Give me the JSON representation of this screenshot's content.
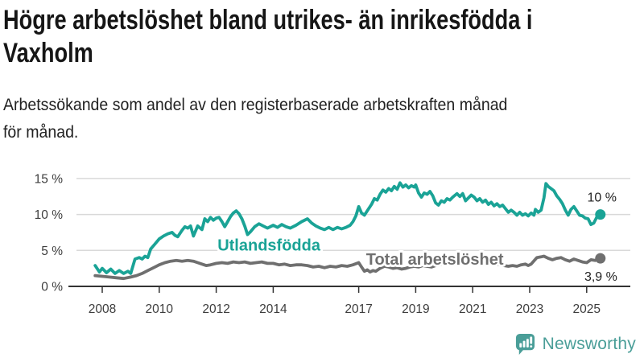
{
  "header": {
    "title_lines": [
      "Högre arbetslöshet bland utrikes- än inrikesfödda i",
      "Vaxholm"
    ],
    "subtitle_lines": [
      "Arbetssökande som andel av den registerbaserade arbetskraften månad",
      "för månad."
    ]
  },
  "colors": {
    "foreign_born": "#1aa396",
    "total": "#6f6f6f",
    "grid": "#d9d9d9",
    "axis": "#333333",
    "tick_text": "#3d3d3d",
    "annotation_text": "#222222",
    "halo": "#ffffff",
    "logo": "#4a9e98"
  },
  "chart_data": {
    "type": "line",
    "title": "Högre arbetslöshet bland utrikes- än inrikesfödda i Vaxholm",
    "subtitle": "Arbetssökande som andel av den registerbaserade arbetskraften månad för månad.",
    "xlabel": "",
    "ylabel": "%",
    "xlim": [
      2007.6,
      2025.6
    ],
    "ylim": [
      0,
      16.3
    ],
    "grid": "horizontal",
    "legend_position": "inline-labels",
    "y_ticks": [
      {
        "value": 15,
        "label": "15 %"
      },
      {
        "value": 10,
        "label": "10 %"
      },
      {
        "value": 5,
        "label": "5 %"
      },
      {
        "value": 0,
        "label": "0 %"
      }
    ],
    "x_ticks": [
      {
        "value": 2008,
        "label": "2008"
      },
      {
        "value": 2010,
        "label": "2010"
      },
      {
        "value": 2012,
        "label": "2012"
      },
      {
        "value": 2014,
        "label": "2014"
      },
      {
        "value": 2017,
        "label": "2017"
      },
      {
        "value": 2019,
        "label": "2019"
      },
      {
        "value": 2021,
        "label": "2021"
      },
      {
        "value": 2023,
        "label": "2023"
      },
      {
        "value": 2025,
        "label": "2025"
      }
    ],
    "series": [
      {
        "name": "Utlandsfödda",
        "key": "utlandsfodda",
        "color": "#1aa396",
        "end_label": "10 %",
        "end_label_at": [
          2025.02,
          11.8
        ],
        "name_label_at": [
          2013.85,
          5.0
        ],
        "points": [
          [
            2007.75,
            2.9
          ],
          [
            2007.9,
            2.0
          ],
          [
            2008.0,
            2.5
          ],
          [
            2008.15,
            1.9
          ],
          [
            2008.3,
            2.4
          ],
          [
            2008.45,
            1.8
          ],
          [
            2008.6,
            2.2
          ],
          [
            2008.75,
            1.8
          ],
          [
            2008.9,
            2.1
          ],
          [
            2009.0,
            1.8
          ],
          [
            2009.15,
            3.8
          ],
          [
            2009.3,
            4.0
          ],
          [
            2009.4,
            3.8
          ],
          [
            2009.5,
            4.2
          ],
          [
            2009.6,
            4.0
          ],
          [
            2009.7,
            5.2
          ],
          [
            2009.85,
            5.9
          ],
          [
            2010.0,
            6.6
          ],
          [
            2010.15,
            7.0
          ],
          [
            2010.3,
            7.3
          ],
          [
            2010.45,
            7.5
          ],
          [
            2010.55,
            7.1
          ],
          [
            2010.65,
            6.9
          ],
          [
            2010.8,
            7.8
          ],
          [
            2010.9,
            8.3
          ],
          [
            2011.0,
            8.1
          ],
          [
            2011.1,
            8.4
          ],
          [
            2011.2,
            7.0
          ],
          [
            2011.35,
            8.4
          ],
          [
            2011.5,
            7.9
          ],
          [
            2011.6,
            9.4
          ],
          [
            2011.7,
            9.0
          ],
          [
            2011.8,
            9.6
          ],
          [
            2011.9,
            9.2
          ],
          [
            2012.0,
            9.5
          ],
          [
            2012.1,
            9.6
          ],
          [
            2012.2,
            9.0
          ],
          [
            2012.3,
            8.3
          ],
          [
            2012.4,
            9.0
          ],
          [
            2012.5,
            9.7
          ],
          [
            2012.6,
            10.2
          ],
          [
            2012.7,
            10.5
          ],
          [
            2012.8,
            10.1
          ],
          [
            2012.9,
            9.4
          ],
          [
            2013.0,
            8.4
          ],
          [
            2013.1,
            7.2
          ],
          [
            2013.2,
            7.6
          ],
          [
            2013.35,
            8.3
          ],
          [
            2013.5,
            8.7
          ],
          [
            2013.65,
            8.4
          ],
          [
            2013.8,
            8.1
          ],
          [
            2014.0,
            8.5
          ],
          [
            2014.15,
            8.2
          ],
          [
            2014.3,
            8.6
          ],
          [
            2014.45,
            8.3
          ],
          [
            2014.6,
            8.1
          ],
          [
            2014.8,
            8.5
          ],
          [
            2015.0,
            9.0
          ],
          [
            2015.2,
            9.4
          ],
          [
            2015.35,
            8.8
          ],
          [
            2015.5,
            8.4
          ],
          [
            2015.65,
            8.1
          ],
          [
            2015.8,
            7.9
          ],
          [
            2015.95,
            8.2
          ],
          [
            2016.1,
            7.9
          ],
          [
            2016.25,
            8.2
          ],
          [
            2016.4,
            8.0
          ],
          [
            2016.55,
            8.2
          ],
          [
            2016.7,
            8.5
          ],
          [
            2016.8,
            9.0
          ],
          [
            2016.9,
            9.8
          ],
          [
            2017.0,
            11.1
          ],
          [
            2017.1,
            10.2
          ],
          [
            2017.2,
            9.9
          ],
          [
            2017.3,
            10.5
          ],
          [
            2017.45,
            11.4
          ],
          [
            2017.55,
            12.2
          ],
          [
            2017.65,
            12.0
          ],
          [
            2017.75,
            12.8
          ],
          [
            2017.85,
            13.4
          ],
          [
            2017.95,
            13.1
          ],
          [
            2018.05,
            13.6
          ],
          [
            2018.15,
            13.3
          ],
          [
            2018.25,
            13.9
          ],
          [
            2018.35,
            13.5
          ],
          [
            2018.45,
            14.4
          ],
          [
            2018.55,
            13.8
          ],
          [
            2018.65,
            14.1
          ],
          [
            2018.75,
            13.7
          ],
          [
            2018.85,
            14.0
          ],
          [
            2018.95,
            13.8
          ],
          [
            2019.0,
            14.1
          ],
          [
            2019.1,
            13.0
          ],
          [
            2019.2,
            12.4
          ],
          [
            2019.3,
            13.0
          ],
          [
            2019.4,
            12.8
          ],
          [
            2019.5,
            13.2
          ],
          [
            2019.6,
            12.6
          ],
          [
            2019.7,
            11.6
          ],
          [
            2019.8,
            11.3
          ],
          [
            2019.9,
            11.9
          ],
          [
            2020.0,
            11.7
          ],
          [
            2020.1,
            12.2
          ],
          [
            2020.2,
            12.0
          ],
          [
            2020.3,
            12.4
          ],
          [
            2020.45,
            12.9
          ],
          [
            2020.55,
            12.5
          ],
          [
            2020.65,
            12.9
          ],
          [
            2020.75,
            11.9
          ],
          [
            2020.85,
            12.3
          ],
          [
            2020.95,
            12.7
          ],
          [
            2021.05,
            12.4
          ],
          [
            2021.15,
            11.9
          ],
          [
            2021.25,
            12.2
          ],
          [
            2021.35,
            11.7
          ],
          [
            2021.45,
            12.0
          ],
          [
            2021.55,
            11.4
          ],
          [
            2021.65,
            11.7
          ],
          [
            2021.75,
            11.2
          ],
          [
            2021.85,
            11.5
          ],
          [
            2021.95,
            11.1
          ],
          [
            2022.05,
            11.3
          ],
          [
            2022.15,
            10.8
          ],
          [
            2022.25,
            10.3
          ],
          [
            2022.35,
            10.6
          ],
          [
            2022.45,
            10.3
          ],
          [
            2022.55,
            9.9
          ],
          [
            2022.65,
            10.3
          ],
          [
            2022.75,
            9.9
          ],
          [
            2022.85,
            10.1
          ],
          [
            2022.95,
            9.8
          ],
          [
            2023.05,
            10.2
          ],
          [
            2023.15,
            9.9
          ],
          [
            2023.2,
            10.7
          ],
          [
            2023.3,
            10.3
          ],
          [
            2023.4,
            10.6
          ],
          [
            2023.5,
            12.3
          ],
          [
            2023.57,
            14.3
          ],
          [
            2023.65,
            13.9
          ],
          [
            2023.75,
            13.6
          ],
          [
            2023.85,
            13.3
          ],
          [
            2023.95,
            12.6
          ],
          [
            2024.05,
            12.1
          ],
          [
            2024.15,
            11.5
          ],
          [
            2024.25,
            10.6
          ],
          [
            2024.35,
            9.9
          ],
          [
            2024.45,
            10.7
          ],
          [
            2024.55,
            11.1
          ],
          [
            2024.65,
            10.5
          ],
          [
            2024.75,
            9.9
          ],
          [
            2024.85,
            9.8
          ],
          [
            2024.95,
            9.5
          ],
          [
            2025.05,
            9.4
          ],
          [
            2025.15,
            8.6
          ],
          [
            2025.25,
            8.8
          ],
          [
            2025.35,
            9.6
          ],
          [
            2025.48,
            10.0
          ]
        ]
      },
      {
        "name": "Total arbetslöshet",
        "key": "total-arbetsloshet",
        "color": "#6f6f6f",
        "end_label": "3,9 %",
        "end_label_at": [
          2024.92,
          0.8
        ],
        "name_label_at": [
          2019.67,
          3.0
        ],
        "points": [
          [
            2007.75,
            1.5
          ],
          [
            2008.0,
            1.4
          ],
          [
            2008.25,
            1.3
          ],
          [
            2008.5,
            1.2
          ],
          [
            2008.75,
            1.1
          ],
          [
            2009.0,
            1.3
          ],
          [
            2009.2,
            1.5
          ],
          [
            2009.4,
            1.8
          ],
          [
            2009.6,
            2.2
          ],
          [
            2009.8,
            2.6
          ],
          [
            2010.0,
            3.0
          ],
          [
            2010.2,
            3.3
          ],
          [
            2010.4,
            3.5
          ],
          [
            2010.6,
            3.6
          ],
          [
            2010.8,
            3.5
          ],
          [
            2011.0,
            3.6
          ],
          [
            2011.2,
            3.5
          ],
          [
            2011.35,
            3.3
          ],
          [
            2011.5,
            3.1
          ],
          [
            2011.65,
            2.9
          ],
          [
            2011.8,
            3.0
          ],
          [
            2012.0,
            3.2
          ],
          [
            2012.2,
            3.3
          ],
          [
            2012.4,
            3.2
          ],
          [
            2012.6,
            3.4
          ],
          [
            2012.8,
            3.3
          ],
          [
            2013.0,
            3.4
          ],
          [
            2013.2,
            3.2
          ],
          [
            2013.4,
            3.3
          ],
          [
            2013.6,
            3.4
          ],
          [
            2013.8,
            3.2
          ],
          [
            2014.0,
            3.2
          ],
          [
            2014.2,
            3.0
          ],
          [
            2014.4,
            3.1
          ],
          [
            2014.6,
            2.9
          ],
          [
            2014.8,
            3.0
          ],
          [
            2015.0,
            3.0
          ],
          [
            2015.2,
            2.9
          ],
          [
            2015.4,
            2.7
          ],
          [
            2015.6,
            2.8
          ],
          [
            2015.8,
            2.6
          ],
          [
            2016.0,
            2.8
          ],
          [
            2016.2,
            2.7
          ],
          [
            2016.4,
            2.9
          ],
          [
            2016.6,
            2.8
          ],
          [
            2016.8,
            3.0
          ],
          [
            2017.0,
            3.3
          ],
          [
            2017.1,
            2.7
          ],
          [
            2017.2,
            2.1
          ],
          [
            2017.3,
            2.3
          ],
          [
            2017.4,
            2.0
          ],
          [
            2017.5,
            2.2
          ],
          [
            2017.6,
            2.1
          ],
          [
            2017.75,
            2.5
          ],
          [
            2017.9,
            2.8
          ],
          [
            2018.05,
            2.7
          ],
          [
            2018.2,
            2.5
          ],
          [
            2018.35,
            2.6
          ],
          [
            2018.5,
            2.4
          ],
          [
            2018.65,
            2.5
          ],
          [
            2018.8,
            2.7
          ],
          [
            2018.95,
            2.8
          ],
          [
            2019.1,
            2.7
          ],
          [
            2019.25,
            2.9
          ],
          [
            2019.4,
            2.8
          ],
          [
            2019.55,
            2.7
          ],
          [
            2019.7,
            2.9
          ],
          [
            2019.85,
            3.0
          ],
          [
            2020.0,
            3.2
          ],
          [
            2020.15,
            3.6
          ],
          [
            2020.3,
            4.0
          ],
          [
            2020.45,
            4.2
          ],
          [
            2020.6,
            4.1
          ],
          [
            2020.75,
            3.9
          ],
          [
            2020.9,
            3.8
          ],
          [
            2021.05,
            3.7
          ],
          [
            2021.2,
            3.5
          ],
          [
            2021.35,
            3.4
          ],
          [
            2021.5,
            3.3
          ],
          [
            2021.65,
            3.2
          ],
          [
            2021.8,
            3.1
          ],
          [
            2021.95,
            3.0
          ],
          [
            2022.1,
            2.9
          ],
          [
            2022.25,
            2.8
          ],
          [
            2022.4,
            2.9
          ],
          [
            2022.55,
            2.8
          ],
          [
            2022.7,
            3.0
          ],
          [
            2022.85,
            3.1
          ],
          [
            2022.95,
            2.9
          ],
          [
            2023.05,
            3.1
          ],
          [
            2023.25,
            4.0
          ],
          [
            2023.4,
            4.1
          ],
          [
            2023.5,
            4.2
          ],
          [
            2023.65,
            3.9
          ],
          [
            2023.8,
            3.7
          ],
          [
            2023.95,
            3.9
          ],
          [
            2024.1,
            4.0
          ],
          [
            2024.25,
            3.7
          ],
          [
            2024.4,
            3.5
          ],
          [
            2024.55,
            3.8
          ],
          [
            2024.7,
            3.6
          ],
          [
            2024.85,
            3.4
          ],
          [
            2025.0,
            3.3
          ],
          [
            2025.15,
            3.7
          ],
          [
            2025.3,
            3.6
          ],
          [
            2025.48,
            3.9
          ]
        ]
      }
    ]
  },
  "logo": {
    "text": "Newsworthy"
  }
}
